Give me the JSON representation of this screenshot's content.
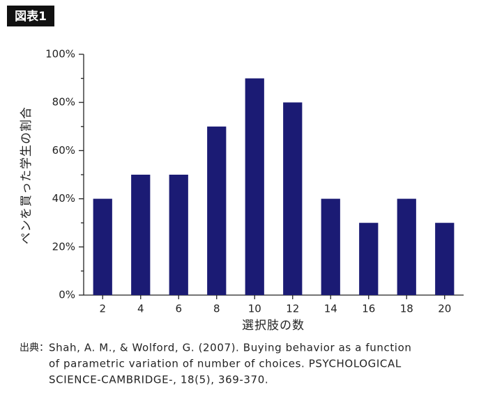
{
  "badge": "図表1",
  "chart_data": {
    "type": "bar",
    "ylabel": "ペンを買った学生の割合",
    "xlabel": "選択肢の数",
    "categories": [
      "2",
      "4",
      "6",
      "8",
      "10",
      "12",
      "14",
      "16",
      "18",
      "20"
    ],
    "values": [
      40,
      50,
      50,
      70,
      90,
      80,
      40,
      30,
      40,
      30
    ],
    "color": "#1b1b74",
    "ylim": [
      0,
      100
    ],
    "yticks": [
      {
        "value": 0,
        "label": "0%"
      },
      {
        "value": 20,
        "label": "20%"
      },
      {
        "value": 40,
        "label": "40%"
      },
      {
        "value": 60,
        "label": "60%"
      },
      {
        "value": 80,
        "label": "80%"
      },
      {
        "value": 100,
        "label": "100%"
      }
    ],
    "yminorticks": [
      10,
      30,
      50,
      70,
      90
    ],
    "grid": false
  },
  "source": {
    "label": "出典：",
    "lines": [
      "Shah, A. M., & Wolford, G. (2007). Buying behavior as a function",
      "of parametric variation of number of choices. PSYCHOLOGICAL",
      "SCIENCE-CAMBRIDGE-, 18(5), 369-370."
    ]
  }
}
